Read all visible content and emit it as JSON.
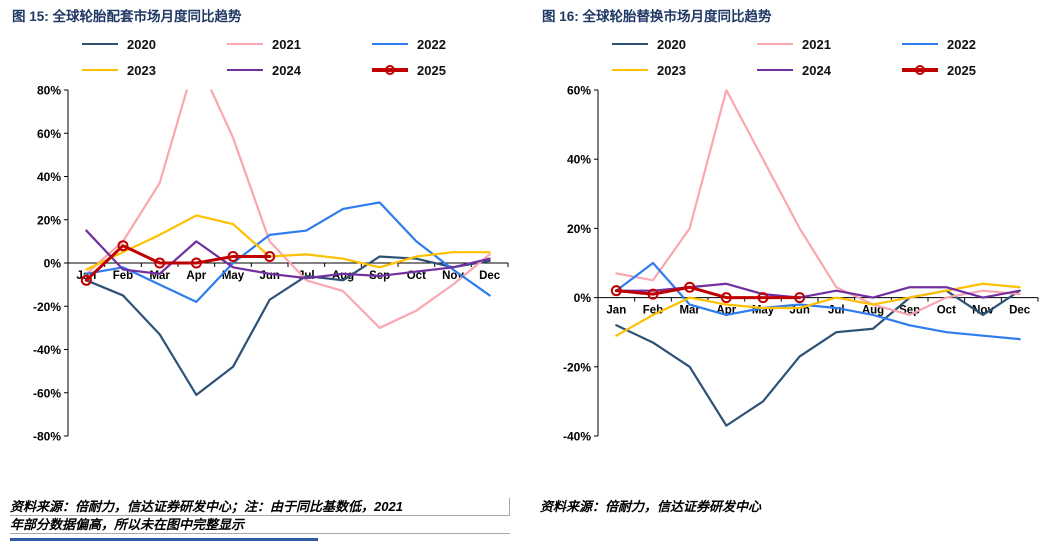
{
  "figures": [
    {
      "title": "图 15:  全球轮胎配套市场月度同比趋势",
      "source_line1": "资料来源：倍耐力，信达证券研发中心；注：由于同比基数低，2021",
      "source_line2": "年部分数据偏高，所以未在图中完整显示"
    },
    {
      "title": "图 16:  全球轮胎替换市场月度同比趋势",
      "source_line1": "资料来源：倍耐力，信达证券研发中心"
    }
  ],
  "colors": {
    "title_blue": "#1F3864",
    "bottom_rule_blue": "#2E5AA8",
    "axis_black": "#000000"
  },
  "chart_data": [
    {
      "type": "line",
      "title": "全球轮胎配套市场月度同比趋势",
      "categories": [
        "Jan",
        "Feb",
        "Mar",
        "Apr",
        "May",
        "Jun",
        "Jul",
        "Aug",
        "Sep",
        "Oct",
        "Nov",
        "Dec"
      ],
      "ylim": [
        -80,
        80
      ],
      "ytick_step": 20,
      "ytick_format": "percent",
      "legend_position": "top",
      "grid": false,
      "note": "2021 series exceeds axis maximum near Apr and is clipped",
      "series": [
        {
          "name": "2020",
          "color": "#2D5276",
          "values": [
            -8,
            -15,
            -33,
            -61,
            -48,
            -17,
            -6,
            -8,
            3,
            2,
            -2,
            1
          ]
        },
        {
          "name": "2021",
          "color": "#F9A7B0",
          "values": [
            -5,
            10,
            37,
            95,
            58,
            10,
            -8,
            -13,
            -30,
            -22,
            -10,
            4
          ]
        },
        {
          "name": "2022",
          "color": "#2E7CEE",
          "values": [
            -5,
            -2,
            -10,
            -18,
            0,
            13,
            15,
            25,
            28,
            10,
            -3,
            -15
          ]
        },
        {
          "name": "2023",
          "color": "#FFC000",
          "values": [
            -3,
            5,
            13,
            22,
            18,
            3,
            4,
            2,
            -2,
            3,
            5,
            5
          ]
        },
        {
          "name": "2024",
          "color": "#7030A0",
          "values": [
            15,
            -3,
            -5,
            10,
            -2,
            -5,
            -7,
            -5,
            -6,
            -4,
            -2,
            2
          ]
        },
        {
          "name": "2025",
          "color": "#C00000",
          "width": 3,
          "marker": "circle",
          "values": [
            -8,
            8,
            0,
            0,
            3,
            3,
            null,
            null,
            null,
            null,
            null,
            null
          ]
        }
      ]
    },
    {
      "type": "line",
      "title": "全球轮胎替换市场月度同比趋势",
      "categories": [
        "Jan",
        "Feb",
        "Mar",
        "Apr",
        "May",
        "Jun",
        "Jul",
        "Aug",
        "Sep",
        "Oct",
        "Nov",
        "Dec"
      ],
      "ylim": [
        -40,
        60
      ],
      "ytick_step": 20,
      "ytick_format": "percent",
      "legend_position": "top",
      "grid": false,
      "series": [
        {
          "name": "2020",
          "color": "#2D5276",
          "values": [
            -8,
            -13,
            -20,
            -37,
            -30,
            -17,
            -10,
            -9,
            0,
            2,
            -5,
            2
          ]
        },
        {
          "name": "2021",
          "color": "#F9A7B0",
          "values": [
            7,
            5,
            20,
            60,
            40,
            20,
            3,
            -2,
            -5,
            0,
            2,
            1
          ]
        },
        {
          "name": "2022",
          "color": "#2E7CEE",
          "values": [
            2,
            10,
            -2,
            -5,
            -3,
            -2,
            -3,
            -5,
            -8,
            -10,
            -11,
            -12
          ]
        },
        {
          "name": "2023",
          "color": "#FFC000",
          "values": [
            -11,
            -5,
            0,
            -2,
            -3,
            -3,
            0,
            -2,
            0,
            2,
            4,
            3
          ]
        },
        {
          "name": "2024",
          "color": "#7030A0",
          "values": [
            2,
            2,
            3,
            4,
            1,
            0,
            2,
            0,
            3,
            3,
            0,
            2
          ]
        },
        {
          "name": "2025",
          "color": "#C00000",
          "width": 3,
          "marker": "circle",
          "values": [
            2,
            1,
            3,
            0,
            0,
            0,
            null,
            null,
            null,
            null,
            null,
            null
          ]
        }
      ]
    }
  ]
}
